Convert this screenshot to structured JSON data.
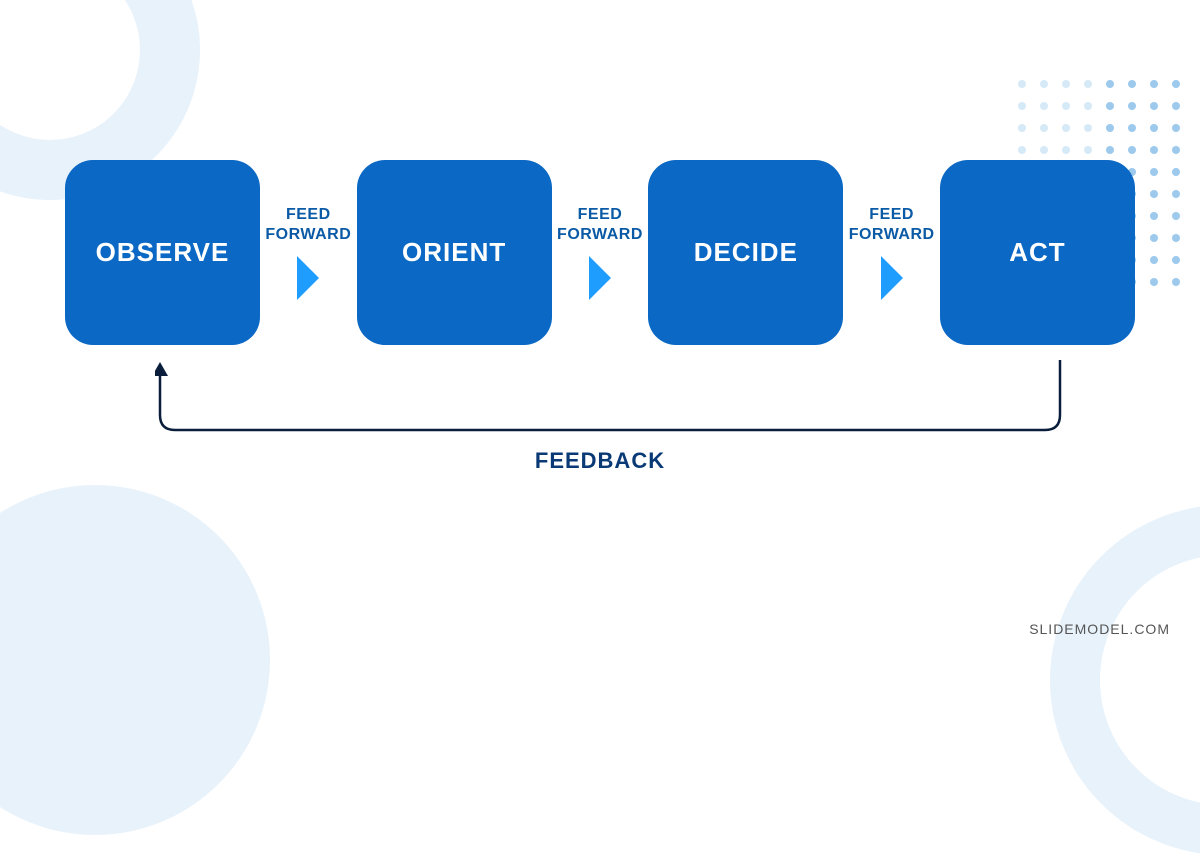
{
  "diagram": {
    "type": "flowchart",
    "boxes": [
      {
        "label": "OBSERVE"
      },
      {
        "label": "ORIENT"
      },
      {
        "label": "DECIDE"
      },
      {
        "label": "ACT"
      }
    ],
    "connector_label_line1": "FEED",
    "connector_label_line2": "FORWARD",
    "feedback_label": "FEEDBACK",
    "colors": {
      "box_bg": "#0b68c4",
      "box_text": "#ffffff",
      "arrow": "#1e9dff",
      "label": "#0b5aa5",
      "feedback_arrow": "#0a1e3c",
      "feedback_text": "#0a3a75",
      "bg_light": "#e8f2fb",
      "dot_light": "#d6e9f7",
      "dot_medium": "#9cc9ec"
    },
    "box_size": {
      "width": 195,
      "height": 185,
      "border_radius": 28
    },
    "arrow_size": 22,
    "dot_grid": {
      "cols": 8,
      "rows": 10,
      "size": 8,
      "gap": 14
    }
  },
  "watermark": "SLIDEMODEL.COM"
}
